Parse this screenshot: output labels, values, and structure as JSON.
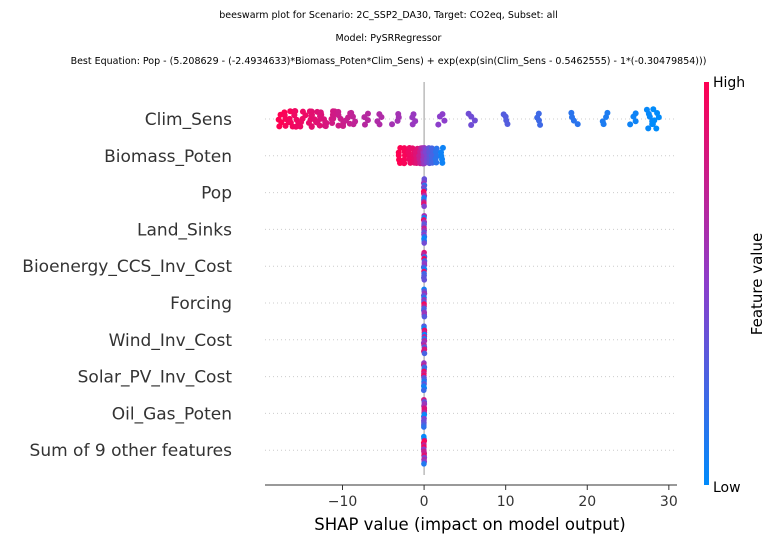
{
  "title": {
    "line1": "beeswarm plot for Scenario: 2C_SSP2_DA30, Target: CO2eq, Subset: all",
    "line2": "Model: PySRRegressor",
    "line3": "Best Equation: Pop - (5.208629 - (-2.4934633)*Biomass_Poten*Clim_Sens) + exp(exp(sin(Clim_Sens - 0.5462555) - 1*(-0.30479854)))"
  },
  "chart_data": {
    "type": "scatter",
    "plot_kind": "shap-beeswarm",
    "xlabel": "SHAP value (impact on model output)",
    "xlim": [
      -19.5,
      31
    ],
    "xticks": [
      -10,
      0,
      10,
      20,
      30
    ],
    "xtick_labels": [
      "−10",
      "0",
      "10",
      "20",
      "30"
    ],
    "grid": "horizontal dotted per feature",
    "colorbar": {
      "label": "Feature value",
      "high_label": "High",
      "low_label": "Low",
      "high_color": "#ff0052",
      "low_color": "#008bfb"
    },
    "features": [
      {
        "name": "Clim_Sens",
        "points": [
          {
            "x": -17.5,
            "v": 1.0
          },
          {
            "x": -16.8,
            "v": 0.97
          },
          {
            "x": -16.2,
            "v": 0.95
          },
          {
            "x": -15.5,
            "v": 0.93
          },
          {
            "x": -14.8,
            "v": 0.92
          },
          {
            "x": -14.2,
            "v": 0.9
          },
          {
            "x": -13.6,
            "v": 0.88
          },
          {
            "x": -13.0,
            "v": 0.86
          },
          {
            "x": -12.4,
            "v": 0.84
          },
          {
            "x": -11.6,
            "v": 0.82
          },
          {
            "x": -10.9,
            "v": 0.79
          },
          {
            "x": -10.1,
            "v": 0.77
          },
          {
            "x": -9.4,
            "v": 0.75
          },
          {
            "x": -8.5,
            "v": 0.72
          },
          {
            "x": -7.2,
            "v": 0.68
          },
          {
            "x": -5.6,
            "v": 0.65
          },
          {
            "x": -3.5,
            "v": 0.6
          },
          {
            "x": -1.3,
            "v": 0.55
          },
          {
            "x": 2.1,
            "v": 0.5
          },
          {
            "x": 5.8,
            "v": 0.4
          },
          {
            "x": 9.9,
            "v": 0.3
          },
          {
            "x": 14.2,
            "v": 0.22
          },
          {
            "x": 18.4,
            "v": 0.15
          },
          {
            "x": 22.3,
            "v": 0.1
          },
          {
            "x": 25.5,
            "v": 0.05
          },
          {
            "x": 27.6,
            "v": 0.02
          },
          {
            "x": 28.4,
            "v": 0.0
          }
        ]
      },
      {
        "name": "Biomass_Poten",
        "points": [
          {
            "x": -3.0,
            "v": 1.0
          },
          {
            "x": -2.4,
            "v": 0.97
          },
          {
            "x": -1.8,
            "v": 0.93
          },
          {
            "x": -1.3,
            "v": 0.9
          },
          {
            "x": -0.9,
            "v": 0.85
          },
          {
            "x": -0.5,
            "v": 0.75
          },
          {
            "x": -0.2,
            "v": 0.65
          },
          {
            "x": 0.0,
            "v": 0.55
          },
          {
            "x": 0.3,
            "v": 0.45
          },
          {
            "x": 0.6,
            "v": 0.35
          },
          {
            "x": 1.0,
            "v": 0.25
          },
          {
            "x": 1.5,
            "v": 0.15
          },
          {
            "x": 2.2,
            "v": 0.05
          }
        ]
      },
      {
        "name": "Pop",
        "points": [
          {
            "x": 0.0,
            "v": 0.5
          }
        ]
      },
      {
        "name": "Land_Sinks",
        "points": [
          {
            "x": 0.0,
            "v": 0.5
          }
        ]
      },
      {
        "name": "Bioenergy_CCS_Inv_Cost",
        "points": [
          {
            "x": 0.0,
            "v": 0.5
          }
        ]
      },
      {
        "name": "Forcing",
        "points": [
          {
            "x": 0.0,
            "v": 0.5
          }
        ]
      },
      {
        "name": "Wind_Inv_Cost",
        "points": [
          {
            "x": 0.0,
            "v": 0.5
          }
        ]
      },
      {
        "name": "Solar_PV_Inv_Cost",
        "points": [
          {
            "x": 0.0,
            "v": 0.5
          }
        ]
      },
      {
        "name": "Oil_Gas_Poten",
        "points": [
          {
            "x": 0.0,
            "v": 0.5
          }
        ]
      },
      {
        "name": "Sum of 9 other features",
        "points": [
          {
            "x": 0.0,
            "v": 0.5
          }
        ]
      }
    ]
  }
}
